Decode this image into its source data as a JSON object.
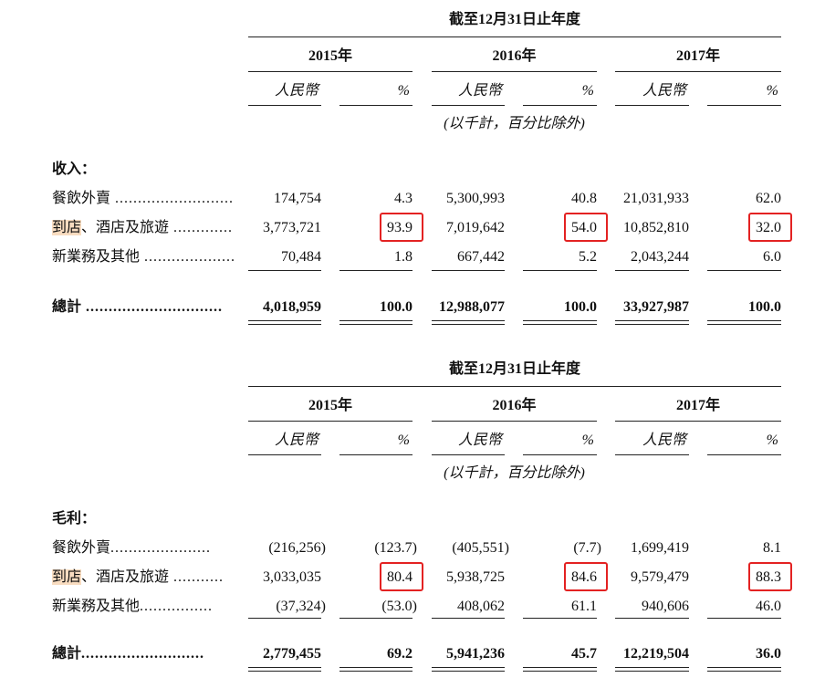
{
  "header": "截至12月31日止年度",
  "years": [
    "2015年",
    "2016年",
    "2017年"
  ],
  "unit_rmb": "人民幣",
  "unit_pct": "%",
  "note": "(以千計，百分比除外)",
  "highlight_color": "#f8dcc0",
  "box_color": "#e32222",
  "tables": [
    {
      "section": "收入：",
      "rows": [
        {
          "label_hl": "",
          "label": "餐飲外賣",
          "dots": " .............................",
          "values": [
            "174,754",
            "4.3",
            "5,300,993",
            "40.8",
            "21,031,933",
            "62.0"
          ]
        },
        {
          "label_hl": "到店",
          "label": "、酒店及旅遊",
          "dots": " .............",
          "values": [
            "3,773,721",
            "93.9",
            "7,019,642",
            "54.0",
            "10,852,810",
            "32.0"
          ],
          "boxed": [
            1,
            3,
            5
          ]
        },
        {
          "label_hl": "",
          "label": "新業務及其他",
          "dots": " .....................",
          "values": [
            "70,484",
            "1.8",
            "667,442",
            "5.2",
            "2,043,244",
            "6.0"
          ]
        }
      ],
      "total": {
        "label": "總計",
        "dots": " ..............................",
        "values": [
          "4,018,959",
          "100.0",
          "12,988,077",
          "100.0",
          "33,927,987",
          "100.0"
        ]
      }
    },
    {
      "section": "毛利：",
      "rows": [
        {
          "label_hl": "",
          "label": "餐飲外賣",
          "dots": "......................",
          "values": [
            "(216,256)",
            "(123.7)",
            "(405,551)",
            "(7.7)",
            "1,699,419",
            "8.1"
          ]
        },
        {
          "label_hl": "到店",
          "label": "、酒店及旅遊",
          "dots": " ...........",
          "values": [
            "3,033,035",
            "80.4",
            "5,938,725",
            "84.6",
            "9,579,479",
            "88.3"
          ],
          "boxed": [
            1,
            3,
            5
          ]
        },
        {
          "label_hl": "",
          "label": "新業務及其他",
          "dots": "................",
          "values": [
            "(37,324)",
            "(53.0)",
            "408,062",
            "61.1",
            "940,606",
            "46.0"
          ]
        }
      ],
      "total": {
        "label": "總計",
        "dots": "...........................",
        "values": [
          "2,779,455",
          "69.2",
          "5,941,236",
          "45.7",
          "12,219,504",
          "36.0"
        ]
      }
    }
  ]
}
